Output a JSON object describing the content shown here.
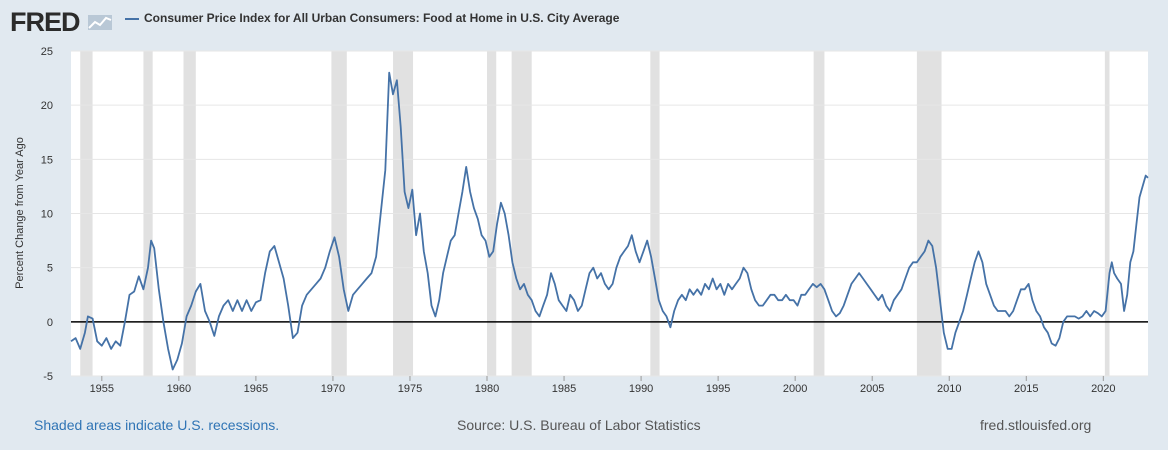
{
  "header": {
    "brand": "FRED",
    "series_title": "Consumer Price Index for All Urban Consumers: Food at Home in U.S. City Average"
  },
  "footer": {
    "recession_note": "Shaded areas indicate U.S. recessions.",
    "source": "Source: U.S. Bureau of Labor Statistics",
    "site": "fred.stlouisfed.org"
  },
  "colors": {
    "background": "#e1e9f0",
    "plot": "#ffffff",
    "line": "#4572a7",
    "recession": "#e1e1e1",
    "zero_line": "#000000"
  },
  "chart_data": {
    "type": "line",
    "title": "Consumer Price Index for All Urban Consumers: Food at Home in U.S. City Average",
    "ylabel": "Percent Change from Year Ago",
    "xlabel": "",
    "ylim": [
      -5,
      25
    ],
    "xlim": [
      1953,
      2022.9
    ],
    "y_ticks": [
      -5,
      0,
      5,
      10,
      15,
      20,
      25
    ],
    "x_ticks": [
      1955,
      1960,
      1965,
      1970,
      1975,
      1980,
      1985,
      1990,
      1995,
      2000,
      2005,
      2010,
      2015,
      2020
    ],
    "grid": "horizontal",
    "reference_line": 0,
    "recessions": [
      [
        1953.6,
        1954.4
      ],
      [
        1957.7,
        1958.3
      ],
      [
        1960.3,
        1961.1
      ],
      [
        1969.9,
        1970.9
      ],
      [
        1973.9,
        1975.2
      ],
      [
        1980.0,
        1980.6
      ],
      [
        1981.6,
        1982.9
      ],
      [
        1990.6,
        1991.2
      ],
      [
        2001.2,
        2001.9
      ],
      [
        2007.9,
        2009.5
      ],
      [
        2020.1,
        2020.4
      ]
    ],
    "series": [
      {
        "name": "Consumer Price Index for All Urban Consumers: Food at Home in U.S. City Average",
        "points": [
          [
            1953.0,
            -1.8
          ],
          [
            1953.3,
            -1.5
          ],
          [
            1953.6,
            -2.5
          ],
          [
            1953.9,
            -1.0
          ],
          [
            1954.1,
            0.5
          ],
          [
            1954.4,
            0.3
          ],
          [
            1954.7,
            -1.8
          ],
          [
            1955.0,
            -2.2
          ],
          [
            1955.3,
            -1.5
          ],
          [
            1955.6,
            -2.5
          ],
          [
            1955.9,
            -1.8
          ],
          [
            1956.2,
            -2.2
          ],
          [
            1956.5,
            0.0
          ],
          [
            1956.8,
            2.5
          ],
          [
            1957.1,
            2.8
          ],
          [
            1957.4,
            4.2
          ],
          [
            1957.7,
            3.0
          ],
          [
            1958.0,
            5.0
          ],
          [
            1958.2,
            7.5
          ],
          [
            1958.4,
            6.8
          ],
          [
            1958.7,
            3.0
          ],
          [
            1959.0,
            0.0
          ],
          [
            1959.3,
            -2.5
          ],
          [
            1959.6,
            -4.4
          ],
          [
            1959.9,
            -3.5
          ],
          [
            1960.2,
            -2.0
          ],
          [
            1960.5,
            0.5
          ],
          [
            1960.8,
            1.5
          ],
          [
            1961.1,
            2.8
          ],
          [
            1961.4,
            3.5
          ],
          [
            1961.7,
            1.0
          ],
          [
            1962.0,
            0.0
          ],
          [
            1962.3,
            -1.3
          ],
          [
            1962.6,
            0.5
          ],
          [
            1962.9,
            1.5
          ],
          [
            1963.2,
            2.0
          ],
          [
            1963.5,
            1.0
          ],
          [
            1963.8,
            2.0
          ],
          [
            1964.1,
            1.0
          ],
          [
            1964.4,
            2.0
          ],
          [
            1964.7,
            1.0
          ],
          [
            1965.0,
            1.8
          ],
          [
            1965.3,
            2.0
          ],
          [
            1965.6,
            4.5
          ],
          [
            1965.9,
            6.5
          ],
          [
            1966.2,
            7.0
          ],
          [
            1966.5,
            5.5
          ],
          [
            1966.8,
            4.0
          ],
          [
            1967.1,
            1.5
          ],
          [
            1967.4,
            -1.5
          ],
          [
            1967.7,
            -1.0
          ],
          [
            1968.0,
            1.5
          ],
          [
            1968.3,
            2.5
          ],
          [
            1968.6,
            3.0
          ],
          [
            1968.9,
            3.5
          ],
          [
            1969.2,
            4.0
          ],
          [
            1969.5,
            5.0
          ],
          [
            1969.8,
            6.5
          ],
          [
            1970.1,
            7.8
          ],
          [
            1970.4,
            6.0
          ],
          [
            1970.7,
            3.0
          ],
          [
            1971.0,
            1.0
          ],
          [
            1971.3,
            2.5
          ],
          [
            1971.6,
            3.0
          ],
          [
            1971.9,
            3.5
          ],
          [
            1972.2,
            4.0
          ],
          [
            1972.5,
            4.5
          ],
          [
            1972.8,
            6.0
          ],
          [
            1973.1,
            10.0
          ],
          [
            1973.4,
            14.0
          ],
          [
            1973.65,
            23.0
          ],
          [
            1973.9,
            21.0
          ],
          [
            1974.15,
            22.3
          ],
          [
            1974.4,
            18.0
          ],
          [
            1974.65,
            12.0
          ],
          [
            1974.9,
            10.5
          ],
          [
            1975.15,
            12.2
          ],
          [
            1975.4,
            8.0
          ],
          [
            1975.65,
            10.0
          ],
          [
            1975.9,
            6.5
          ],
          [
            1976.15,
            4.5
          ],
          [
            1976.4,
            1.5
          ],
          [
            1976.65,
            0.5
          ],
          [
            1976.9,
            2.0
          ],
          [
            1977.15,
            4.5
          ],
          [
            1977.4,
            6.0
          ],
          [
            1977.65,
            7.5
          ],
          [
            1977.9,
            8.0
          ],
          [
            1978.15,
            10.0
          ],
          [
            1978.4,
            12.0
          ],
          [
            1978.65,
            14.3
          ],
          [
            1978.9,
            12.0
          ],
          [
            1979.15,
            10.5
          ],
          [
            1979.4,
            9.5
          ],
          [
            1979.65,
            8.0
          ],
          [
            1979.9,
            7.5
          ],
          [
            1980.15,
            6.0
          ],
          [
            1980.4,
            6.5
          ],
          [
            1980.65,
            9.0
          ],
          [
            1980.9,
            11.0
          ],
          [
            1981.15,
            10.0
          ],
          [
            1981.4,
            8.0
          ],
          [
            1981.65,
            5.5
          ],
          [
            1981.9,
            4.0
          ],
          [
            1982.15,
            3.0
          ],
          [
            1982.4,
            3.5
          ],
          [
            1982.65,
            2.5
          ],
          [
            1982.9,
            2.0
          ],
          [
            1983.15,
            1.0
          ],
          [
            1983.4,
            0.5
          ],
          [
            1983.65,
            1.5
          ],
          [
            1983.9,
            2.5
          ],
          [
            1984.15,
            4.5
          ],
          [
            1984.4,
            3.5
          ],
          [
            1984.65,
            2.0
          ],
          [
            1984.9,
            1.5
          ],
          [
            1985.15,
            1.0
          ],
          [
            1985.4,
            2.5
          ],
          [
            1985.65,
            2.0
          ],
          [
            1985.9,
            1.0
          ],
          [
            1986.15,
            1.5
          ],
          [
            1986.4,
            3.0
          ],
          [
            1986.65,
            4.5
          ],
          [
            1986.9,
            5.0
          ],
          [
            1987.15,
            4.0
          ],
          [
            1987.4,
            4.5
          ],
          [
            1987.65,
            3.5
          ],
          [
            1987.9,
            3.0
          ],
          [
            1988.15,
            3.5
          ],
          [
            1988.4,
            5.0
          ],
          [
            1988.65,
            6.0
          ],
          [
            1988.9,
            6.5
          ],
          [
            1989.15,
            7.0
          ],
          [
            1989.4,
            8.0
          ],
          [
            1989.65,
            6.5
          ],
          [
            1989.9,
            5.5
          ],
          [
            1990.15,
            6.5
          ],
          [
            1990.4,
            7.5
          ],
          [
            1990.65,
            6.0
          ],
          [
            1990.9,
            4.0
          ],
          [
            1991.15,
            2.0
          ],
          [
            1991.4,
            1.0
          ],
          [
            1991.65,
            0.5
          ],
          [
            1991.9,
            -0.5
          ],
          [
            1992.15,
            1.0
          ],
          [
            1992.4,
            2.0
          ],
          [
            1992.65,
            2.5
          ],
          [
            1992.9,
            2.0
          ],
          [
            1993.15,
            3.0
          ],
          [
            1993.4,
            2.5
          ],
          [
            1993.65,
            3.0
          ],
          [
            1993.9,
            2.5
          ],
          [
            1994.15,
            3.5
          ],
          [
            1994.4,
            3.0
          ],
          [
            1994.65,
            4.0
          ],
          [
            1994.9,
            3.0
          ],
          [
            1995.15,
            3.5
          ],
          [
            1995.4,
            2.5
          ],
          [
            1995.65,
            3.5
          ],
          [
            1995.9,
            3.0
          ],
          [
            1996.15,
            3.5
          ],
          [
            1996.4,
            4.0
          ],
          [
            1996.65,
            5.0
          ],
          [
            1996.9,
            4.5
          ],
          [
            1997.15,
            3.0
          ],
          [
            1997.4,
            2.0
          ],
          [
            1997.65,
            1.5
          ],
          [
            1997.9,
            1.5
          ],
          [
            1998.15,
            2.0
          ],
          [
            1998.4,
            2.5
          ],
          [
            1998.65,
            2.5
          ],
          [
            1998.9,
            2.0
          ],
          [
            1999.15,
            2.0
          ],
          [
            1999.4,
            2.5
          ],
          [
            1999.65,
            2.0
          ],
          [
            1999.9,
            2.0
          ],
          [
            2000.15,
            1.5
          ],
          [
            2000.4,
            2.5
          ],
          [
            2000.65,
            2.5
          ],
          [
            2000.9,
            3.0
          ],
          [
            2001.15,
            3.5
          ],
          [
            2001.4,
            3.2
          ],
          [
            2001.65,
            3.5
          ],
          [
            2001.9,
            3.0
          ],
          [
            2002.15,
            2.0
          ],
          [
            2002.4,
            1.0
          ],
          [
            2002.65,
            0.5
          ],
          [
            2002.9,
            0.8
          ],
          [
            2003.15,
            1.5
          ],
          [
            2003.4,
            2.5
          ],
          [
            2003.65,
            3.5
          ],
          [
            2003.9,
            4.0
          ],
          [
            2004.15,
            4.5
          ],
          [
            2004.4,
            4.0
          ],
          [
            2004.65,
            3.5
          ],
          [
            2004.9,
            3.0
          ],
          [
            2005.15,
            2.5
          ],
          [
            2005.4,
            2.0
          ],
          [
            2005.65,
            2.5
          ],
          [
            2005.9,
            1.5
          ],
          [
            2006.15,
            1.0
          ],
          [
            2006.4,
            2.0
          ],
          [
            2006.65,
            2.5
          ],
          [
            2006.9,
            3.0
          ],
          [
            2007.15,
            4.0
          ],
          [
            2007.4,
            5.0
          ],
          [
            2007.65,
            5.5
          ],
          [
            2007.9,
            5.5
          ],
          [
            2008.15,
            6.0
          ],
          [
            2008.4,
            6.5
          ],
          [
            2008.65,
            7.5
          ],
          [
            2008.9,
            7.0
          ],
          [
            2009.15,
            5.0
          ],
          [
            2009.4,
            2.0
          ],
          [
            2009.65,
            -1.0
          ],
          [
            2009.9,
            -2.5
          ],
          [
            2010.15,
            -2.5
          ],
          [
            2010.4,
            -1.0
          ],
          [
            2010.65,
            0.0
          ],
          [
            2010.9,
            1.0
          ],
          [
            2011.15,
            2.5
          ],
          [
            2011.4,
            4.0
          ],
          [
            2011.65,
            5.5
          ],
          [
            2011.9,
            6.5
          ],
          [
            2012.15,
            5.5
          ],
          [
            2012.4,
            3.5
          ],
          [
            2012.65,
            2.5
          ],
          [
            2012.9,
            1.5
          ],
          [
            2013.15,
            1.0
          ],
          [
            2013.4,
            1.0
          ],
          [
            2013.65,
            1.0
          ],
          [
            2013.9,
            0.5
          ],
          [
            2014.15,
            1.0
          ],
          [
            2014.4,
            2.0
          ],
          [
            2014.65,
            3.0
          ],
          [
            2014.9,
            3.0
          ],
          [
            2015.15,
            3.5
          ],
          [
            2015.4,
            2.0
          ],
          [
            2015.65,
            1.0
          ],
          [
            2015.9,
            0.5
          ],
          [
            2016.15,
            -0.5
          ],
          [
            2016.4,
            -1.0
          ],
          [
            2016.65,
            -2.0
          ],
          [
            2016.9,
            -2.2
          ],
          [
            2017.15,
            -1.5
          ],
          [
            2017.4,
            0.0
          ],
          [
            2017.65,
            0.5
          ],
          [
            2017.9,
            0.5
          ],
          [
            2018.15,
            0.5
          ],
          [
            2018.4,
            0.3
          ],
          [
            2018.65,
            0.5
          ],
          [
            2018.9,
            1.0
          ],
          [
            2019.15,
            0.5
          ],
          [
            2019.4,
            1.0
          ],
          [
            2019.65,
            0.8
          ],
          [
            2019.9,
            0.5
          ],
          [
            2020.15,
            1.0
          ],
          [
            2020.4,
            4.5
          ],
          [
            2020.55,
            5.5
          ],
          [
            2020.7,
            4.5
          ],
          [
            2020.9,
            4.0
          ],
          [
            2021.15,
            3.5
          ],
          [
            2021.35,
            1.0
          ],
          [
            2021.55,
            2.5
          ],
          [
            2021.75,
            5.5
          ],
          [
            2021.95,
            6.5
          ],
          [
            2022.15,
            9.0
          ],
          [
            2022.35,
            11.5
          ],
          [
            2022.55,
            12.5
          ],
          [
            2022.75,
            13.5
          ],
          [
            2022.9,
            13.3
          ]
        ]
      }
    ]
  }
}
